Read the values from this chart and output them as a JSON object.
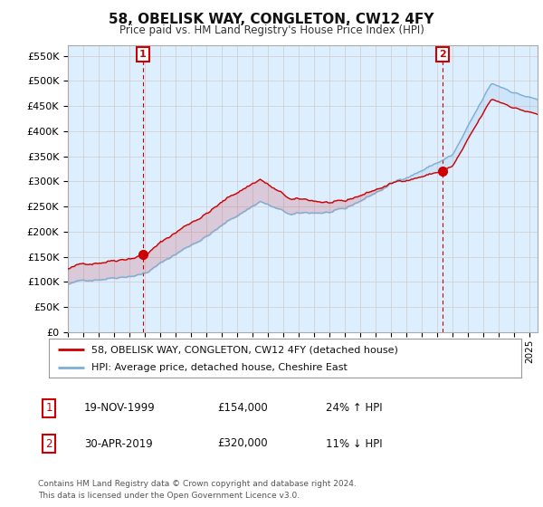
{
  "title": "58, OBELISK WAY, CONGLETON, CW12 4FY",
  "subtitle": "Price paid vs. HM Land Registry's House Price Index (HPI)",
  "ylabel_ticks": [
    "£0",
    "£50K",
    "£100K",
    "£150K",
    "£200K",
    "£250K",
    "£300K",
    "£350K",
    "£400K",
    "£450K",
    "£500K",
    "£550K"
  ],
  "ytick_values": [
    0,
    50000,
    100000,
    150000,
    200000,
    250000,
    300000,
    350000,
    400000,
    450000,
    500000,
    550000
  ],
  "ylim": [
    0,
    570000
  ],
  "xlim_start": 1995.0,
  "xlim_end": 2025.5,
  "hpi_color": "#7bafd4",
  "price_color": "#cc0000",
  "fill_color": "#ddeeff",
  "sale1_date": 1999.88,
  "sale1_price": 154000,
  "sale1_label": "1",
  "sale2_date": 2019.33,
  "sale2_price": 320000,
  "sale2_label": "2",
  "legend_line1": "58, OBELISK WAY, CONGLETON, CW12 4FY (detached house)",
  "legend_line2": "HPI: Average price, detached house, Cheshire East",
  "table_row1": [
    "1",
    "19-NOV-1999",
    "£154,000",
    "24% ↑ HPI"
  ],
  "table_row2": [
    "2",
    "30-APR-2019",
    "£320,000",
    "11% ↓ HPI"
  ],
  "footnote": "Contains HM Land Registry data © Crown copyright and database right 2024.\nThis data is licensed under the Open Government Licence v3.0.",
  "background_color": "#ffffff",
  "grid_color": "#cccccc"
}
